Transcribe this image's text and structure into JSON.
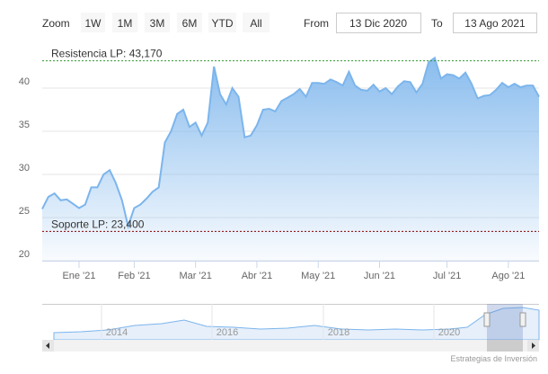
{
  "range_selector": {
    "zoom_label": "Zoom",
    "buttons": [
      "1W",
      "1M",
      "3M",
      "6M",
      "YTD",
      "All"
    ],
    "from_label": "From",
    "from": "13 Dic 2020",
    "to_label": "To",
    "to": "13 Ago 2021"
  },
  "chart_data": {
    "type": "area",
    "categories": [
      null,
      null,
      null,
      null,
      null,
      null,
      "Ene '21",
      null,
      null,
      null,
      null,
      null,
      null,
      null,
      null,
      "Feb '21",
      null,
      null,
      null,
      null,
      null,
      null,
      null,
      null,
      null,
      "Mar '21",
      null,
      null,
      null,
      null,
      null,
      null,
      null,
      null,
      null,
      "Abr '21",
      null,
      null,
      null,
      null,
      null,
      null,
      null,
      null,
      null,
      "May '21",
      null,
      null,
      null,
      null,
      null,
      null,
      null,
      null,
      null,
      "Jun '21",
      null,
      null,
      null,
      null,
      null,
      null,
      null,
      null,
      null,
      null,
      "Jul '21",
      null,
      null,
      null,
      null,
      null,
      null,
      null,
      null,
      null,
      "Ago '21",
      null,
      null,
      null,
      null,
      null
    ],
    "series": [
      {
        "color": "#7cb5ec",
        "values": [
          26,
          27.4,
          27.8,
          27,
          27.1,
          26.6,
          26.1,
          26.5,
          28.5,
          28.5,
          30,
          30.5,
          29,
          27,
          24,
          26.1,
          26.5,
          27.2,
          28,
          28.5,
          33.7,
          35,
          37,
          37.5,
          35.5,
          36,
          34.5,
          36,
          42.5,
          39.3,
          38.1,
          40,
          39,
          34.3,
          34.5,
          35.7,
          37.5,
          37.6,
          37.3,
          38.5,
          38.9,
          39.3,
          39.9,
          39,
          40.6,
          40.6,
          40.5,
          41,
          40.7,
          40.3,
          41.9,
          40.3,
          39.8,
          39.7,
          40.4,
          39.6,
          40,
          39.3,
          40.2,
          40.8,
          40.7,
          39.5,
          40.5,
          43,
          43.5,
          41.1,
          41.6,
          41.5,
          41.1,
          41.8,
          40.5,
          38.8,
          39.1,
          39.2,
          39.8,
          40.6,
          40.1,
          40.5,
          40.1,
          40.3,
          40.3,
          39
        ]
      }
    ],
    "ylim": [
      20,
      45
    ],
    "yticks": [
      20,
      25,
      30,
      35,
      40
    ],
    "grid": true,
    "plot_lines": [
      {
        "value": 43.17,
        "label": "Resistencia LP: 43,170",
        "color": "#2e9b2e"
      },
      {
        "value": 23.4,
        "label": "Soporte LP: 23,400",
        "color": "#8b0000"
      }
    ]
  },
  "navigator": {
    "labels": [
      "2014",
      "2016",
      "2018",
      "2020"
    ]
  },
  "credits": "Estrategias de Inversión"
}
